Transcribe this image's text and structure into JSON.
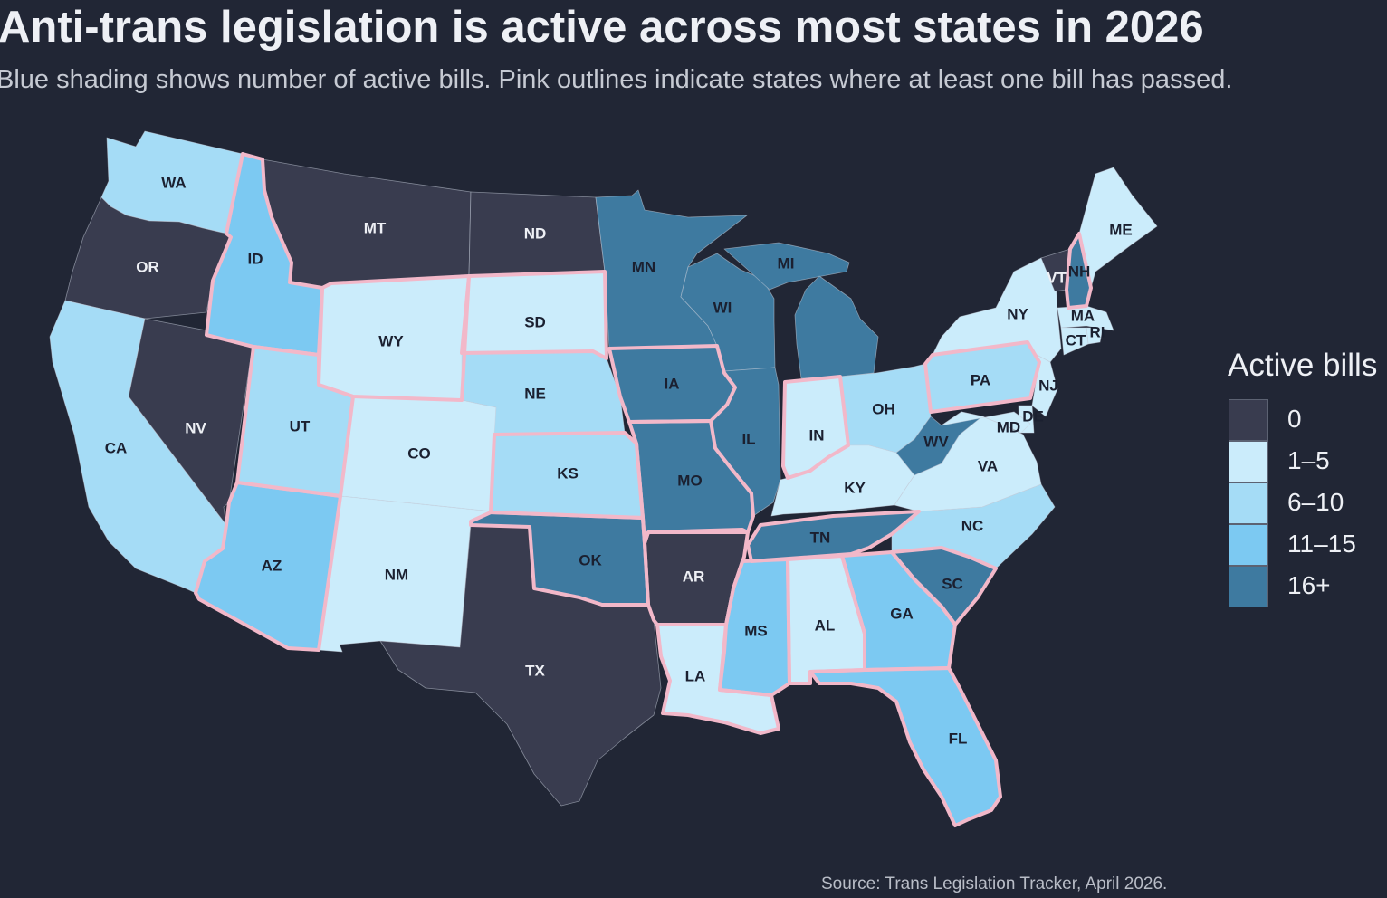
{
  "title": "Anti-trans legislation is active across most states in 2026",
  "subtitle": "Blue shading shows number of active bills. Pink outlines indicate states where at least one bill has passed.",
  "source": "Source: Trans Legislation Tracker, April 2026.",
  "legend": {
    "title": "Active bills",
    "bins": [
      {
        "label": "0",
        "color": "#393c4f"
      },
      {
        "label": "1–5",
        "color": "#cbecfb"
      },
      {
        "label": "6–10",
        "color": "#a5dcf6"
      },
      {
        "label": "11–15",
        "color": "#7cc9f2"
      },
      {
        "label": "16+",
        "color": "#3e7aa0"
      }
    ]
  },
  "passed_outline_color": "#f2b8c9",
  "states": [
    {
      "abbr": "WA",
      "bin": 2,
      "passed": false
    },
    {
      "abbr": "OR",
      "bin": 0,
      "passed": false
    },
    {
      "abbr": "CA",
      "bin": 2,
      "passed": false
    },
    {
      "abbr": "NV",
      "bin": 0,
      "passed": false
    },
    {
      "abbr": "ID",
      "bin": 3,
      "passed": true
    },
    {
      "abbr": "MT",
      "bin": 0,
      "passed": false
    },
    {
      "abbr": "WY",
      "bin": 1,
      "passed": true
    },
    {
      "abbr": "UT",
      "bin": 2,
      "passed": true
    },
    {
      "abbr": "AZ",
      "bin": 3,
      "passed": true
    },
    {
      "abbr": "CO",
      "bin": 1,
      "passed": false
    },
    {
      "abbr": "NM",
      "bin": 1,
      "passed": false
    },
    {
      "abbr": "ND",
      "bin": 0,
      "passed": false
    },
    {
      "abbr": "SD",
      "bin": 1,
      "passed": true
    },
    {
      "abbr": "NE",
      "bin": 2,
      "passed": false
    },
    {
      "abbr": "KS",
      "bin": 2,
      "passed": true
    },
    {
      "abbr": "OK",
      "bin": 4,
      "passed": true
    },
    {
      "abbr": "TX",
      "bin": 0,
      "passed": false
    },
    {
      "abbr": "MN",
      "bin": 4,
      "passed": false
    },
    {
      "abbr": "IA",
      "bin": 4,
      "passed": true
    },
    {
      "abbr": "MO",
      "bin": 4,
      "passed": true
    },
    {
      "abbr": "AR",
      "bin": 0,
      "passed": true
    },
    {
      "abbr": "LA",
      "bin": 1,
      "passed": true
    },
    {
      "abbr": "WI",
      "bin": 4,
      "passed": false
    },
    {
      "abbr": "IL",
      "bin": 4,
      "passed": false
    },
    {
      "abbr": "MI",
      "bin": 4,
      "passed": false
    },
    {
      "abbr": "IN",
      "bin": 1,
      "passed": true
    },
    {
      "abbr": "OH",
      "bin": 2,
      "passed": false
    },
    {
      "abbr": "KY",
      "bin": 1,
      "passed": false
    },
    {
      "abbr": "TN",
      "bin": 4,
      "passed": true
    },
    {
      "abbr": "MS",
      "bin": 3,
      "passed": true
    },
    {
      "abbr": "AL",
      "bin": 1,
      "passed": true
    },
    {
      "abbr": "GA",
      "bin": 3,
      "passed": true
    },
    {
      "abbr": "FL",
      "bin": 3,
      "passed": true
    },
    {
      "abbr": "SC",
      "bin": 4,
      "passed": true
    },
    {
      "abbr": "NC",
      "bin": 2,
      "passed": false
    },
    {
      "abbr": "VA",
      "bin": 1,
      "passed": false
    },
    {
      "abbr": "WV",
      "bin": 4,
      "passed": false
    },
    {
      "abbr": "PA",
      "bin": 2,
      "passed": true
    },
    {
      "abbr": "NY",
      "bin": 1,
      "passed": false
    },
    {
      "abbr": "VT",
      "bin": 0,
      "passed": false
    },
    {
      "abbr": "NH",
      "bin": 4,
      "passed": true
    },
    {
      "abbr": "ME",
      "bin": 1,
      "passed": false
    },
    {
      "abbr": "MA",
      "bin": 1,
      "passed": false
    },
    {
      "abbr": "RI",
      "bin": 1,
      "passed": false
    },
    {
      "abbr": "CT",
      "bin": 1,
      "passed": false
    },
    {
      "abbr": "NJ",
      "bin": 1,
      "passed": false
    },
    {
      "abbr": "DE",
      "bin": 1,
      "passed": false
    },
    {
      "abbr": "MD",
      "bin": 1,
      "passed": false
    }
  ]
}
